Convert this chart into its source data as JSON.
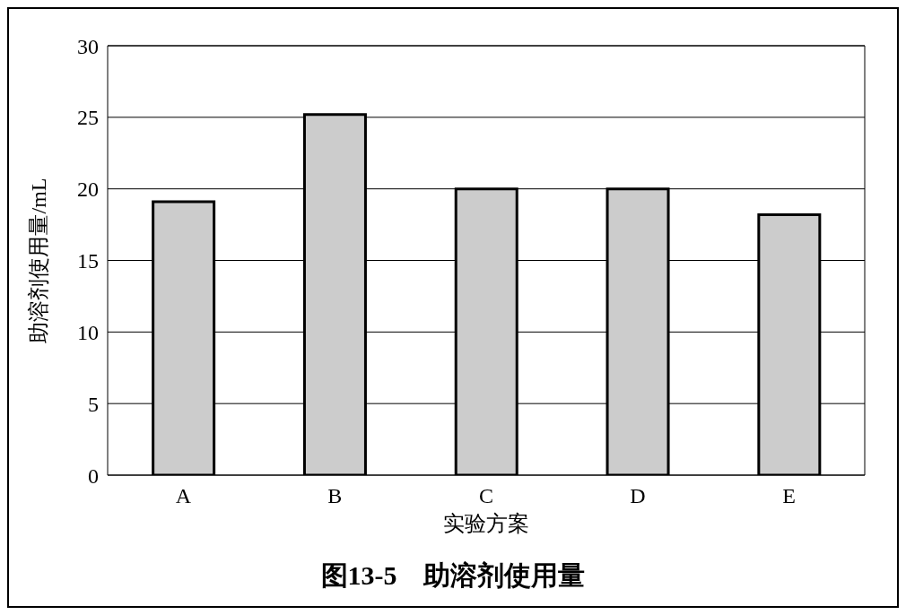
{
  "chart_data": {
    "type": "bar",
    "title": "图13-5　助溶剂使用量",
    "xlabel": "实验方案",
    "ylabel": "助溶剂使用量/mL",
    "categories": [
      "A",
      "B",
      "C",
      "D",
      "E"
    ],
    "values": [
      19.1,
      25.2,
      20,
      20,
      18.2
    ],
    "color": "#cccccc",
    "ylim": [
      0,
      30
    ],
    "yticks": [
      0,
      5,
      10,
      15,
      20,
      25,
      30
    ],
    "grid": "y"
  }
}
